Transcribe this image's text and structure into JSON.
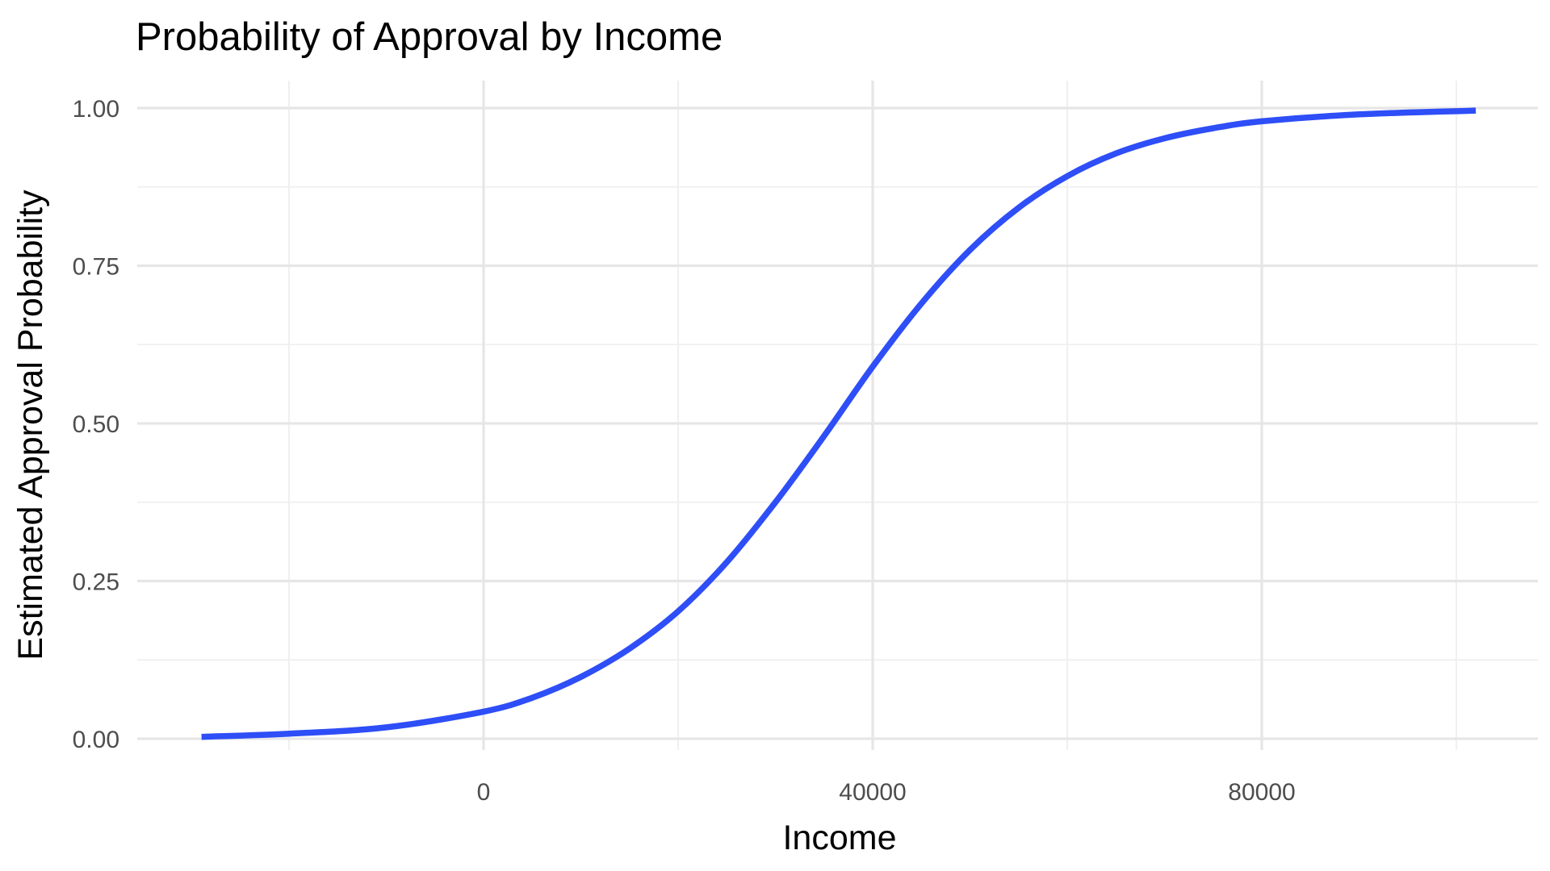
{
  "chart_data": {
    "type": "line",
    "title": "Probability of Approval by Income",
    "xlabel": "Income",
    "ylabel": "Estimated Approval Probability",
    "xlim": [
      -36000,
      104000
    ],
    "ylim": [
      0,
      1
    ],
    "x_ticks": [
      0,
      40000,
      80000
    ],
    "x_tick_labels": [
      "0",
      "40000",
      "80000"
    ],
    "x_minor_ticks": [
      -20000,
      20000,
      60000,
      100000
    ],
    "y_ticks": [
      0,
      0.25,
      0.5,
      0.75,
      1.0
    ],
    "y_tick_labels": [
      "0.00",
      "0.25",
      "0.50",
      "0.75",
      "1.00"
    ],
    "y_minor_ticks": [
      0.125,
      0.375,
      0.625,
      0.875
    ],
    "grid": true,
    "legend": "none",
    "line_color": "#2e4ef7",
    "series": [
      {
        "x": [
          -29000,
          -20000,
          -10000,
          0,
          5000,
          10000,
          15000,
          20000,
          25000,
          30000,
          35000,
          40000,
          45000,
          50000,
          55000,
          60000,
          65000,
          70000,
          75000,
          80000,
          90000,
          102000
        ],
        "values": [
          0.003,
          0.008,
          0.018,
          0.043,
          0.065,
          0.098,
          0.143,
          0.202,
          0.28,
          0.375,
          0.48,
          0.59,
          0.69,
          0.775,
          0.842,
          0.892,
          0.928,
          0.952,
          0.968,
          0.979,
          0.99,
          0.996
        ]
      }
    ]
  }
}
